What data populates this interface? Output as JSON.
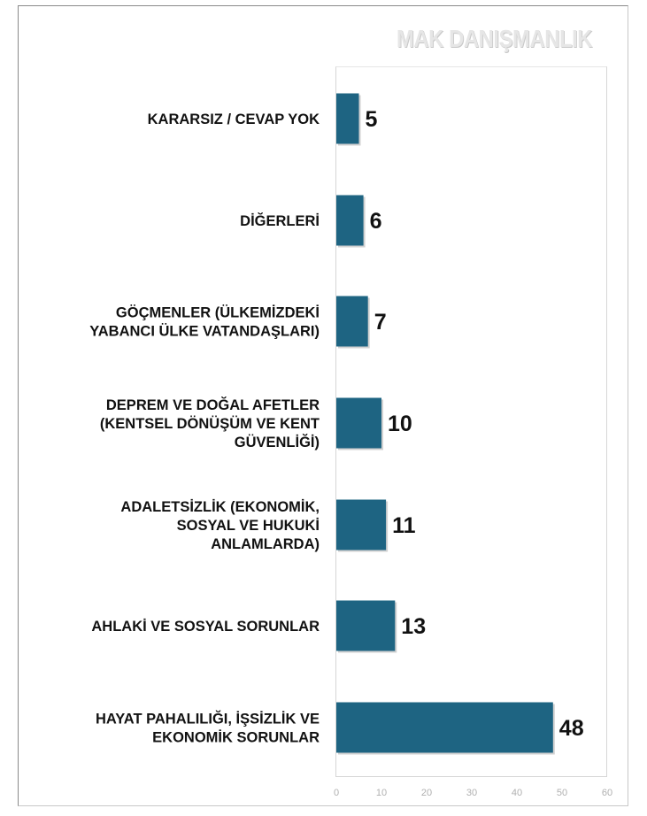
{
  "brand": "MAK DANIŞMANLIK",
  "chart_data": {
    "type": "bar",
    "orientation": "horizontal",
    "categories": [
      [
        "KARARSIZ / CEVAP YOK"
      ],
      [
        "DİĞERLERİ"
      ],
      [
        "GÖÇMENLER (ÜLKEMİZDEKİ",
        "YABANCI ÜLKE VATANDAŞLARI)"
      ],
      [
        "DEPREM VE DOĞAL AFETLER",
        "(KENTSEL DÖNÜŞÜM VE KENT",
        "GÜVENLİĞİ)"
      ],
      [
        "ADALETSİZLİK (EKONOMİK,",
        "SOSYAL VE HUKUKİ",
        "ANLAMLARDA)"
      ],
      [
        "AHLAKİ VE SOSYAL SORUNLAR"
      ],
      [
        "HAYAT PAHALILIĞI, İŞSİZLİK VE",
        "EKONOMİK SORUNLAR"
      ]
    ],
    "values": [
      5,
      6,
      7,
      10,
      11,
      13,
      48
    ],
    "xlim": [
      0,
      60
    ],
    "xticks": [
      "0",
      "10",
      "20",
      "30",
      "40",
      "50",
      "60"
    ],
    "bar_color": "#1e6482",
    "grid": false,
    "data_labels": true
  }
}
